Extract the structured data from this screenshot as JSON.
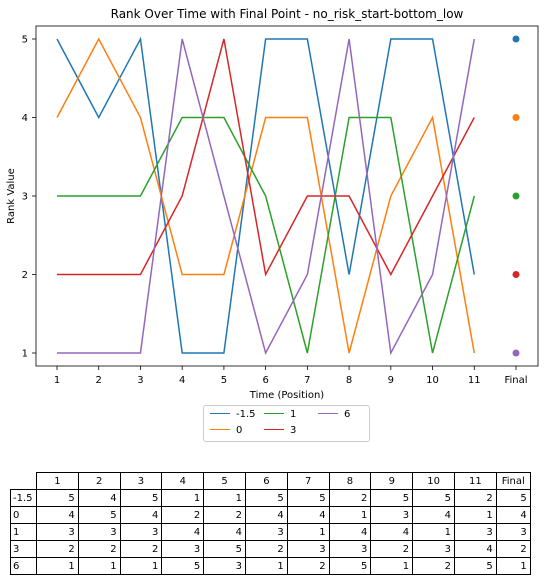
{
  "chart_data": {
    "type": "line",
    "title": "Rank Over Time with Final Point - no_risk_start-bottom_low",
    "xlabel": "Time (Position)",
    "ylabel": "Rank Value",
    "x": [
      1,
      2,
      3,
      4,
      5,
      6,
      7,
      8,
      9,
      10,
      11
    ],
    "x_tick_labels": [
      "1",
      "2",
      "3",
      "4",
      "5",
      "6",
      "7",
      "8",
      "9",
      "10",
      "11",
      "Final"
    ],
    "y_ticks": [
      "1",
      "2",
      "3",
      "4",
      "5"
    ],
    "ylim": [
      0.8,
      5.2
    ],
    "grid": false,
    "legend_placement": "below",
    "series": [
      {
        "name": "-1.5",
        "color": "#1f77b4",
        "values": [
          5,
          4,
          5,
          1,
          1,
          5,
          5,
          2,
          5,
          5,
          2
        ],
        "final": 5
      },
      {
        "name": "0",
        "color": "#ff7f0e",
        "values": [
          4,
          5,
          4,
          2,
          2,
          4,
          4,
          1,
          3,
          4,
          1
        ],
        "final": 4
      },
      {
        "name": "1",
        "color": "#2ca02c",
        "values": [
          3,
          3,
          3,
          4,
          4,
          3,
          1,
          4,
          4,
          1,
          3
        ],
        "final": 3
      },
      {
        "name": "3",
        "color": "#d62728",
        "values": [
          2,
          2,
          2,
          3,
          5,
          2,
          3,
          3,
          2,
          3,
          4
        ],
        "final": 2
      },
      {
        "name": "6",
        "color": "#9467bd",
        "values": [
          1,
          1,
          1,
          5,
          3,
          1,
          2,
          5,
          1,
          2,
          5
        ],
        "final": 1
      }
    ],
    "table": {
      "columns": [
        "1",
        "2",
        "3",
        "4",
        "5",
        "6",
        "7",
        "8",
        "9",
        "10",
        "11",
        "Final"
      ],
      "rows": [
        {
          "label": "-1.5",
          "cells": [
            "5",
            "4",
            "5",
            "1",
            "1",
            "5",
            "5",
            "2",
            "5",
            "5",
            "2",
            "5"
          ]
        },
        {
          "label": "0",
          "cells": [
            "4",
            "5",
            "4",
            "2",
            "2",
            "4",
            "4",
            "1",
            "3",
            "4",
            "1",
            "4"
          ]
        },
        {
          "label": "1",
          "cells": [
            "3",
            "3",
            "3",
            "4",
            "4",
            "3",
            "1",
            "4",
            "4",
            "1",
            "3",
            "3"
          ]
        },
        {
          "label": "3",
          "cells": [
            "2",
            "2",
            "2",
            "3",
            "5",
            "2",
            "3",
            "3",
            "2",
            "3",
            "4",
            "2"
          ]
        },
        {
          "label": "6",
          "cells": [
            "1",
            "1",
            "1",
            "5",
            "3",
            "1",
            "2",
            "5",
            "1",
            "2",
            "5",
            "1"
          ]
        }
      ]
    }
  }
}
